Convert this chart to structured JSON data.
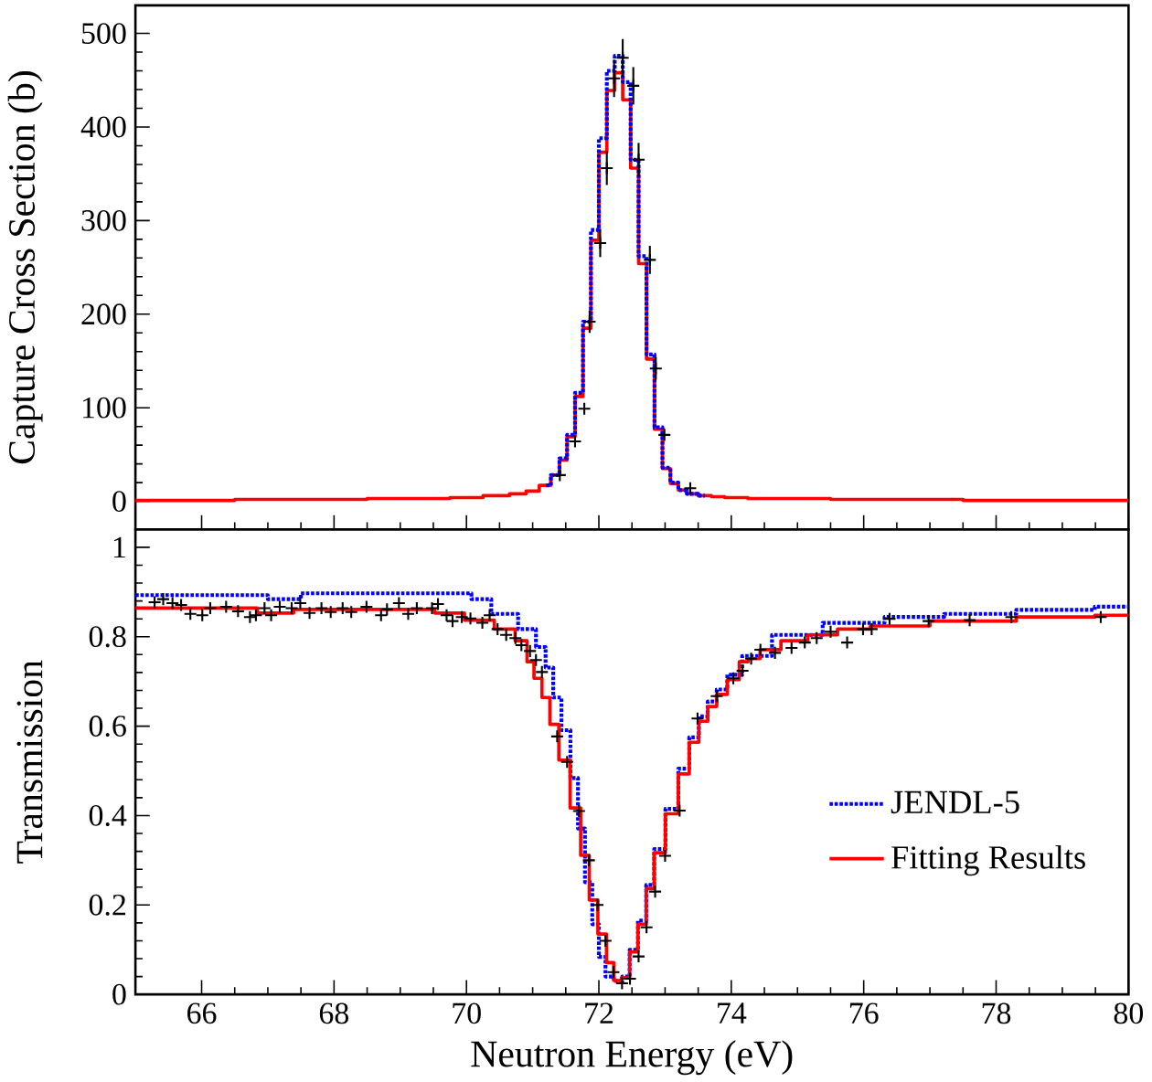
{
  "chart_data": [
    {
      "type": "step",
      "ylabel": "Capture Cross Section (b)",
      "xlim": [
        65,
        80
      ],
      "xticks": [
        66,
        68,
        70,
        72,
        74,
        76,
        78,
        80
      ],
      "ylim": [
        -30,
        530
      ],
      "yticks": [
        0,
        100,
        200,
        300,
        400,
        500
      ],
      "tick_labels": "y",
      "grid": false,
      "legend": false,
      "series": [
        {
          "color": "#ff0000",
          "line_style": "solid",
          "x": [
            65,
            66,
            67,
            68,
            69,
            69.5,
            70,
            70.5,
            70.8,
            71.0,
            71.2,
            71.35,
            71.46,
            71.58,
            71.7,
            71.82,
            71.94,
            72.06,
            72.18,
            72.3,
            72.42,
            72.54,
            72.66,
            72.78,
            72.9,
            73.02,
            73.14,
            73.26,
            73.4,
            73.6,
            73.8,
            74.0,
            74.5,
            75,
            76,
            77,
            78,
            79,
            80
          ],
          "values": [
            1,
            1,
            2,
            2,
            3,
            3,
            4,
            6,
            8,
            11,
            17,
            28,
            44,
            69,
            112,
            185,
            279,
            373,
            439,
            458,
            429,
            356,
            254,
            152,
            77,
            35,
            19,
            12,
            8,
            6,
            5,
            4,
            3,
            3,
            2,
            2,
            1,
            1,
            1
          ]
        },
        {
          "color": "#0000ff",
          "line_style": "dotted",
          "x": [
            71.2,
            71.35,
            71.46,
            71.58,
            71.7,
            71.82,
            71.94,
            72.06,
            72.18,
            72.3,
            72.42,
            72.54,
            72.66,
            72.78,
            72.9,
            73.02,
            73.14,
            73.26,
            73.4,
            73.6
          ],
          "values": [
            17,
            28,
            46,
            71,
            116,
            192,
            290,
            388,
            460,
            476,
            448,
            365,
            262,
            157,
            79,
            36,
            20,
            12,
            8,
            6
          ]
        },
        {
          "type": "scatter",
          "color": "#000000",
          "marker": "cross",
          "x": [
            71.41,
            71.64,
            71.78,
            71.86,
            72.02,
            72.12,
            72.23,
            72.36,
            72.52,
            72.6,
            72.77,
            72.86,
            72.99,
            73.38
          ],
          "values": [
            28,
            64,
            99,
            192,
            276,
            356,
            452,
            474,
            444,
            365,
            258,
            142,
            71,
            14
          ],
          "errors": [
            null,
            null,
            null,
            12,
            15,
            18,
            20,
            20,
            20,
            18,
            15,
            12,
            null,
            null
          ]
        }
      ]
    },
    {
      "type": "step",
      "xlabel": "Neutron Energy (eV)",
      "ylabel": "Transmission",
      "xlim": [
        65,
        80
      ],
      "xticks": [
        66,
        68,
        70,
        72,
        74,
        76,
        78,
        80
      ],
      "ylim": [
        0,
        1.04
      ],
      "yticks": [
        0,
        0.2,
        0.4,
        0.6,
        0.8,
        1
      ],
      "grid": false,
      "legend": "right",
      "series": [
        {
          "name": "JENDL-5",
          "color": "#0000ff",
          "line_style": "dotted",
          "x": [
            65,
            66.8,
            67.2,
            67.8,
            70.0,
            70.15,
            70.6,
            70.96,
            71.14,
            71.25,
            71.37,
            71.5,
            71.64,
            71.73,
            71.85,
            71.95,
            72.05,
            72.15,
            72.3,
            72.41,
            72.52,
            72.66,
            72.77,
            72.9,
            73.11,
            73.29,
            73.44,
            73.58,
            73.71,
            73.85,
            74.03,
            74.3,
            74.93,
            75.83,
            76.8,
            77.63,
            78.98,
            80
          ],
          "values": [
            0.893,
            0.893,
            0.884,
            0.897,
            0.897,
            0.884,
            0.851,
            0.817,
            0.777,
            0.731,
            0.664,
            0.591,
            0.484,
            0.371,
            0.251,
            0.157,
            0.084,
            0.04,
            0.03,
            0.04,
            0.1,
            0.165,
            0.245,
            0.325,
            0.415,
            0.505,
            0.575,
            0.622,
            0.655,
            0.682,
            0.715,
            0.757,
            0.804,
            0.831,
            0.844,
            0.851,
            0.86,
            0.867
          ]
        },
        {
          "name": "Fitting Results",
          "color": "#ff0000",
          "line_style": "solid",
          "x": [
            65,
            66.6,
            67.08,
            67.7,
            69.34,
            69.7,
            70.24,
            70.6,
            70.87,
            70.96,
            71.08,
            71.2,
            71.32,
            71.47,
            71.66,
            71.79,
            71.92,
            72.05,
            72.18,
            72.27,
            72.41,
            72.52,
            72.66,
            72.77,
            72.9,
            73.11,
            73.29,
            73.44,
            73.58,
            73.71,
            73.85,
            74.03,
            74.21,
            74.3,
            74.57,
            74.93,
            75.38,
            75.83,
            76.37,
            77.63,
            78.98,
            80
          ],
          "values": [
            0.864,
            0.864,
            0.853,
            0.861,
            0.861,
            0.853,
            0.837,
            0.817,
            0.791,
            0.744,
            0.707,
            0.664,
            0.604,
            0.524,
            0.417,
            0.311,
            0.211,
            0.135,
            0.071,
            0.031,
            0.037,
            0.095,
            0.157,
            0.237,
            0.317,
            0.404,
            0.493,
            0.564,
            0.611,
            0.644,
            0.671,
            0.704,
            0.744,
            0.751,
            0.771,
            0.791,
            0.804,
            0.817,
            0.824,
            0.835,
            0.844,
            0.848
          ]
        },
        {
          "type": "scatter",
          "color": "#000000",
          "marker": "cross",
          "x": [
            65.29,
            65.42,
            65.56,
            65.69,
            65.83,
            66.01,
            66.13,
            66.37,
            66.55,
            66.73,
            66.82,
            66.95,
            67.05,
            67.18,
            67.36,
            67.49,
            67.63,
            67.81,
            67.95,
            68.13,
            68.26,
            68.49,
            68.71,
            68.8,
            68.98,
            69.12,
            69.25,
            69.48,
            69.57,
            69.7,
            69.79,
            69.93,
            70.06,
            70.24,
            70.35,
            70.47,
            70.6,
            70.74,
            70.83,
            70.96,
            71.05,
            71.14,
            71.37,
            71.52,
            71.7,
            71.85,
            71.98,
            72.1,
            72.22,
            72.35,
            72.47,
            72.6,
            72.72,
            72.85,
            73.0,
            73.22,
            73.49,
            73.78,
            74.03,
            74.17,
            74.3,
            74.44,
            74.66,
            74.91,
            75.11,
            75.29,
            75.5,
            75.75,
            75.99,
            76.12,
            76.39,
            76.98,
            77.6,
            78.23,
            79.58
          ],
          "values": [
            0.877,
            0.884,
            0.875,
            0.871,
            0.851,
            0.848,
            0.864,
            0.867,
            0.857,
            0.844,
            0.848,
            0.864,
            0.848,
            0.867,
            0.864,
            0.875,
            0.853,
            0.864,
            0.855,
            0.864,
            0.855,
            0.867,
            0.848,
            0.861,
            0.875,
            0.851,
            0.864,
            0.864,
            0.873,
            0.848,
            0.835,
            0.844,
            0.841,
            0.831,
            0.848,
            0.817,
            0.804,
            0.797,
            0.781,
            0.768,
            0.748,
            0.721,
            0.577,
            0.52,
            0.41,
            0.3,
            0.2,
            0.12,
            0.05,
            0.025,
            0.035,
            0.085,
            0.15,
            0.23,
            0.31,
            0.411,
            0.617,
            0.667,
            0.707,
            0.724,
            0.751,
            0.771,
            0.764,
            0.775,
            0.787,
            0.797,
            0.811,
            0.787,
            0.817,
            0.817,
            0.84,
            0.835,
            0.837,
            0.844,
            0.844
          ]
        }
      ]
    }
  ]
}
